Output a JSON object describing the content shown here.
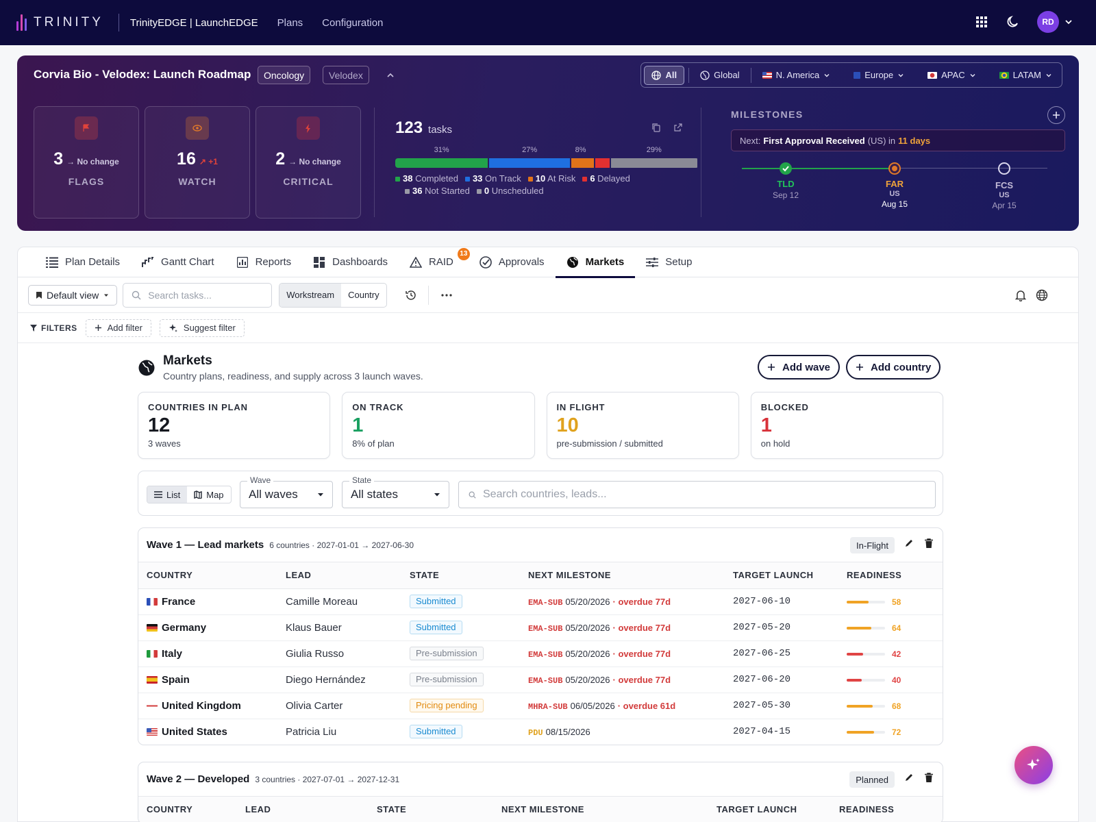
{
  "topnav": {
    "brand": "TRINITY",
    "product": "TrinityEDGE | LaunchEDGE",
    "links": [
      "Plans",
      "Configuration"
    ],
    "avatar_initials": "RD",
    "icons": [
      "apps-grid-icon",
      "moon-icon",
      "chevron-down-icon"
    ]
  },
  "hero": {
    "title": "Corvia Bio - Velodex: Launch Roadmap",
    "chips": [
      "Oncology",
      "Velodex"
    ],
    "regions": [
      {
        "label": "All",
        "icon": "globe-icon",
        "active": true
      },
      {
        "label": "Global",
        "icon": "globe-icon"
      },
      {
        "label": "N. America",
        "icon": "us-flag-icon"
      },
      {
        "label": "Europe",
        "icon": "eu-flag-icon"
      },
      {
        "label": "APAC",
        "icon": "jp-flag-icon"
      },
      {
        "label": "LATAM",
        "icon": "br-flag-icon"
      }
    ],
    "stats": [
      {
        "value": "3",
        "delta": "→ No change",
        "label": "FLAGS",
        "icon": "flag-icon",
        "color": "#e0433a"
      },
      {
        "value": "16",
        "delta": "↗ +1",
        "label": "WATCH",
        "icon": "eye-icon",
        "color": "#e0792a"
      },
      {
        "value": "2",
        "delta": "→ No change",
        "label": "CRITICAL",
        "icon": "bolt-icon",
        "color": "#d8323a"
      }
    ],
    "tasks": {
      "count": "123",
      "word": "tasks",
      "segments": [
        {
          "pct": "31%",
          "share": 31,
          "color": "#22a34a"
        },
        {
          "pct": "27%",
          "share": 27,
          "color": "#1f6fe0"
        },
        {
          "pct": "8%",
          "share": 8,
          "color": "#e0731a"
        },
        {
          "pct": "",
          "share": 5,
          "color": "#e23030"
        },
        {
          "pct": "29%",
          "share": 29,
          "color": "#8a8a96"
        }
      ],
      "legend": [
        {
          "num": "38",
          "label": "Completed",
          "color": "#22a34a"
        },
        {
          "num": "33",
          "label": "On Track",
          "color": "#1f6fe0"
        },
        {
          "num": "10",
          "label": "At Risk",
          "color": "#e0731a"
        },
        {
          "num": "6",
          "label": "Delayed",
          "color": "#e23030"
        },
        {
          "num": "36",
          "label": "Not Started",
          "color": "#9a9aa6"
        },
        {
          "num": "0",
          "label": "Unscheduled",
          "color": "#9a9aa6"
        }
      ]
    },
    "milestones": {
      "title": "MILESTONES",
      "next_prefix": "Next:",
      "next_name": "First Approval Received",
      "next_region": "(US) in",
      "next_days": "11 days",
      "items": [
        {
          "code": "TLD",
          "sub": "",
          "date": "Sep 12",
          "state": "done"
        },
        {
          "code": "FAR",
          "sub": "US",
          "date": "Aug 15",
          "state": "current"
        },
        {
          "code": "FCS",
          "sub": "US",
          "date": "Apr 15",
          "state": "future"
        }
      ]
    }
  },
  "tabs": [
    {
      "label": "Plan Details",
      "icon": "list-icon"
    },
    {
      "label": "Gantt Chart",
      "icon": "gantt-icon"
    },
    {
      "label": "Reports",
      "icon": "bar-chart-icon"
    },
    {
      "label": "Dashboards",
      "icon": "dashboard-icon"
    },
    {
      "label": "RAID",
      "icon": "warning-icon",
      "badge": "13"
    },
    {
      "label": "Approvals",
      "icon": "check-circle-icon"
    },
    {
      "label": "Markets",
      "icon": "globe-icon",
      "active": true
    },
    {
      "label": "Setup",
      "icon": "sliders-icon"
    }
  ],
  "toolbar": {
    "view": "Default view",
    "search_placeholder": "Search tasks...",
    "group_options": [
      "Workstream",
      "Country"
    ],
    "group_selected": "Workstream"
  },
  "filters": {
    "label": "FILTERS",
    "add": "Add filter",
    "suggest": "Suggest filter"
  },
  "markets": {
    "title": "Markets",
    "subtitle": "Country plans, readiness, and supply across 3 launch waves.",
    "add_wave": "Add wave",
    "add_country": "Add country",
    "kpis": [
      {
        "label": "COUNTRIES IN PLAN",
        "value": "12",
        "sub": "3 waves",
        "color": "#15181f"
      },
      {
        "label": "ON TRACK",
        "value": "1",
        "sub": "8% of plan",
        "color": "#1aa061"
      },
      {
        "label": "IN FLIGHT",
        "value": "10",
        "sub": "pre-submission / submitted",
        "color": "#e0a21e"
      },
      {
        "label": "BLOCKED",
        "value": "1",
        "sub": "on hold",
        "color": "#d8323a"
      }
    ],
    "view_toggle": {
      "list": "List",
      "map": "Map",
      "selected": "List"
    },
    "wave_filter": {
      "label": "Wave",
      "value": "All waves"
    },
    "state_filter": {
      "label": "State",
      "value": "All states"
    },
    "search_placeholder": "Search countries, leads..."
  },
  "columns": [
    "COUNTRY",
    "LEAD",
    "STATE",
    "NEXT MILESTONE",
    "TARGET LAUNCH",
    "READINESS"
  ],
  "waves": [
    {
      "title": "Wave 1 — Lead markets",
      "meta": "6 countries · 2027-01-01 → 2027-06-30",
      "status": "In-Flight",
      "rows": [
        {
          "country": "France",
          "flag": "fr",
          "lead": "Camille Moreau",
          "state": "Submitted",
          "state_kind": "sub",
          "ms_code": "EMA-SUB",
          "ms_date": "05/20/2026",
          "overdue": "· overdue 77d",
          "target": "2027-06-10",
          "readiness": 58
        },
        {
          "country": "Germany",
          "flag": "de",
          "lead": "Klaus Bauer",
          "state": "Submitted",
          "state_kind": "sub",
          "ms_code": "EMA-SUB",
          "ms_date": "05/20/2026",
          "overdue": "· overdue 77d",
          "target": "2027-05-20",
          "readiness": 64
        },
        {
          "country": "Italy",
          "flag": "it",
          "lead": "Giulia Russo",
          "state": "Pre-submission",
          "state_kind": "pre",
          "ms_code": "EMA-SUB",
          "ms_date": "05/20/2026",
          "overdue": "· overdue 77d",
          "target": "2027-06-25",
          "readiness": 42
        },
        {
          "country": "Spain",
          "flag": "es",
          "lead": "Diego Hernández",
          "state": "Pre-submission",
          "state_kind": "pre",
          "ms_code": "EMA-SUB",
          "ms_date": "05/20/2026",
          "overdue": "· overdue 77d",
          "target": "2027-06-20",
          "readiness": 40
        },
        {
          "country": "United Kingdom",
          "flag": "gb",
          "lead": "Olivia Carter",
          "state": "Pricing pending",
          "state_kind": "price",
          "ms_code": "MHRA-SUB",
          "ms_date": "06/05/2026",
          "overdue": "· overdue 61d",
          "target": "2027-05-30",
          "readiness": 68
        },
        {
          "country": "United States",
          "flag": "us",
          "lead": "Patricia Liu",
          "state": "Submitted",
          "state_kind": "sub",
          "ms_code": "PDU",
          "ms_date": "08/15/2026",
          "overdue": "",
          "target": "2027-04-15",
          "readiness": 72
        }
      ]
    },
    {
      "title": "Wave 2 — Developed",
      "meta": "3 countries · 2027-07-01 → 2027-12-31",
      "status": "Planned",
      "rows": []
    }
  ],
  "colors": {
    "nav_bg": "#0d0b3d",
    "accent_orange": "#f07a1a",
    "danger": "#d23b3b",
    "warn": "#e0a21e",
    "success": "#1aa061"
  }
}
